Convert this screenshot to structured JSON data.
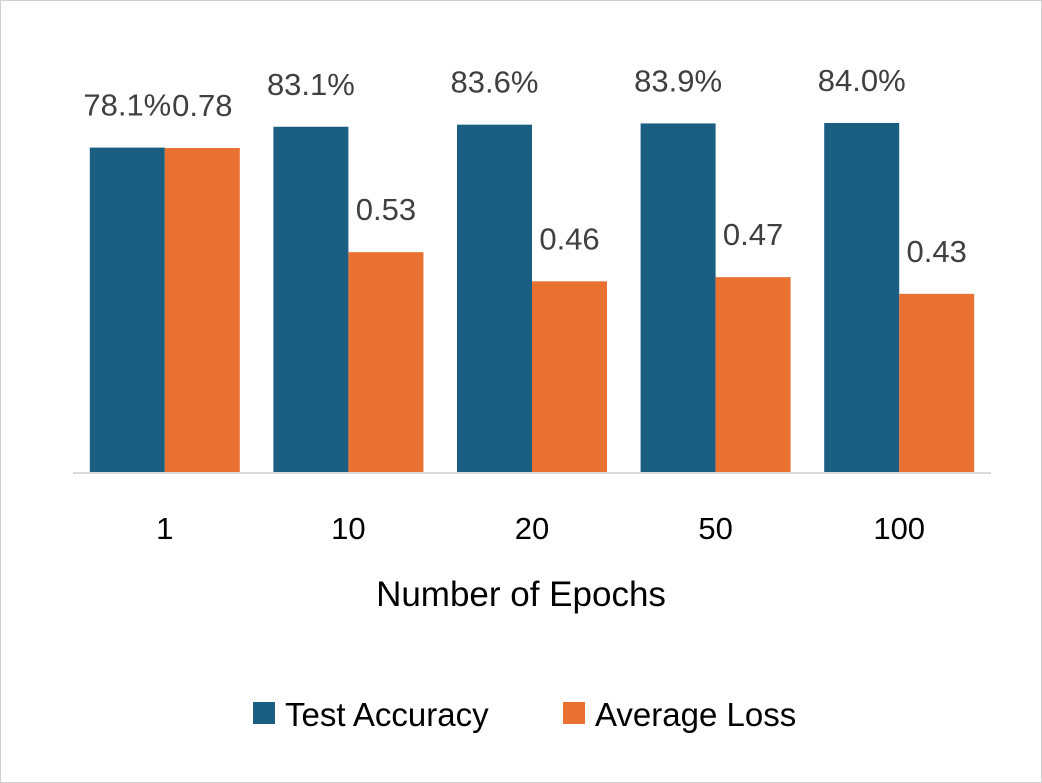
{
  "chart_data": {
    "type": "bar",
    "title": "",
    "xlabel": "Number of Epochs",
    "ylabel": "",
    "categories": [
      "1",
      "10",
      "20",
      "50",
      "100"
    ],
    "series": [
      {
        "name": "Test Accuracy",
        "color": "#1a5f82",
        "values": [
          78.1,
          83.1,
          83.6,
          83.9,
          84.0
        ],
        "labels": [
          "78.1%",
          "83.1%",
          "83.6%",
          "83.9%",
          "84.0%"
        ]
      },
      {
        "name": "Average Loss",
        "color": "#e97132",
        "values": [
          0.78,
          0.53,
          0.46,
          0.47,
          0.43
        ],
        "labels": [
          "0.78",
          "0.53",
          "0.46",
          "0.47",
          "0.43"
        ]
      }
    ],
    "grid": false,
    "legend": "bottom-center"
  }
}
